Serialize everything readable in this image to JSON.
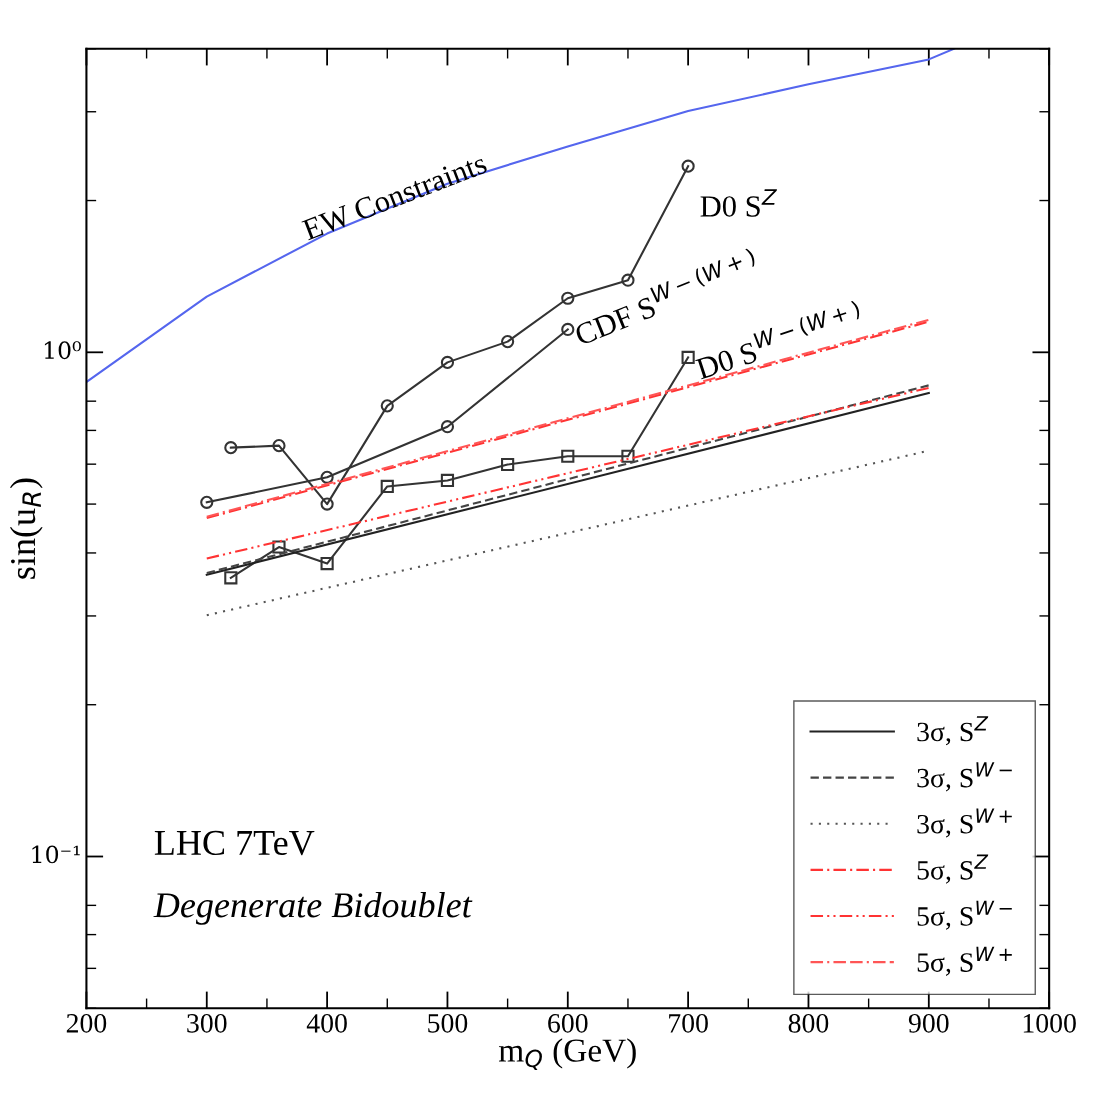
{
  "chart_data": {
    "type": "line",
    "xlabel": "m$_{Q}$ (GeV)",
    "ylabel": "sin(u$_{R}$)",
    "log": "y",
    "xlim": [
      200,
      1000
    ],
    "ylim": [
      0.05,
      4
    ],
    "xticks": [
      200,
      300,
      400,
      500,
      600,
      700,
      800,
      900,
      1000
    ],
    "yticks": [
      {
        "value": 0.1,
        "label": "10⁻¹"
      },
      {
        "value": 1,
        "label": "10⁰"
      }
    ],
    "grid": false,
    "legend": "bottom right",
    "series": [
      {
        "color": "#5566ee",
        "marker": "none",
        "line_style": "solid",
        "x": [
          200,
          300,
          400,
          500,
          600,
          700,
          800,
          900,
          921
        ],
        "values": [
          0.873,
          1.29,
          1.72,
          2.16,
          2.56,
          3.01,
          3.4,
          3.81,
          4.0
        ]
      },
      {
        "color": "#333333",
        "marker": "circle",
        "line_style": "solid",
        "x": [
          320,
          360,
          400,
          450,
          500,
          550,
          600,
          650,
          700
        ],
        "values": [
          0.647,
          0.653,
          0.5,
          0.783,
          0.955,
          1.05,
          1.28,
          1.39,
          2.34
        ]
      },
      {
        "color": "#333333",
        "marker": "circle",
        "line_style": "solid",
        "x": [
          300,
          400,
          500,
          600
        ],
        "values": [
          0.504,
          0.565,
          0.712,
          1.11
        ]
      },
      {
        "color": "#333333",
        "marker": "square",
        "line_style": "solid",
        "x": [
          320,
          360,
          400,
          450,
          500,
          550,
          600,
          650,
          700
        ],
        "values": [
          0.357,
          0.411,
          0.381,
          0.542,
          0.557,
          0.599,
          0.622,
          0.622,
          0.977
        ]
      },
      {
        "name": "3σ, S$^{Z}$",
        "color": "#222222",
        "marker": "none",
        "line_style": "solid",
        "x": [
          300,
          900
        ],
        "values": [
          0.362,
          0.83
        ]
      },
      {
        "name": "3σ, S$^{W−}$",
        "color": "#444444",
        "marker": "none",
        "line_style": "dashed",
        "x": [
          300,
          900
        ],
        "values": [
          0.365,
          0.86
        ]
      },
      {
        "name": "3σ, S$^{W+}$",
        "color": "#555555",
        "marker": "none",
        "line_style": "dotted",
        "x": [
          300,
          900
        ],
        "values": [
          0.301,
          0.638
        ]
      },
      {
        "name": "5σ, S$^{Z}$",
        "color": "#ff3333",
        "marker": "none",
        "line_style": "dashdot",
        "x": [
          300,
          900
        ],
        "values": [
          0.469,
          1.15
        ]
      },
      {
        "name": "5σ, S$^{W−}$",
        "color": "#ff3333",
        "marker": "none",
        "line_style": "dashdotdot",
        "x": [
          300,
          900
        ],
        "values": [
          0.39,
          0.85
        ]
      },
      {
        "name": "5σ, S$^{W+}$",
        "color": "#ff5555",
        "marker": "none",
        "line_style": "dashdotdash",
        "x": [
          300,
          900
        ],
        "values": [
          0.472,
          1.16
        ]
      }
    ],
    "annotations": [
      "EW Constraints",
      "D0 S$^{Z}$",
      "CDF S$^{W−(W+)}$",
      "D0 S$^{W−(W+)}$",
      "LHC 7TeV",
      "Degenerate Bidoublet"
    ]
  }
}
